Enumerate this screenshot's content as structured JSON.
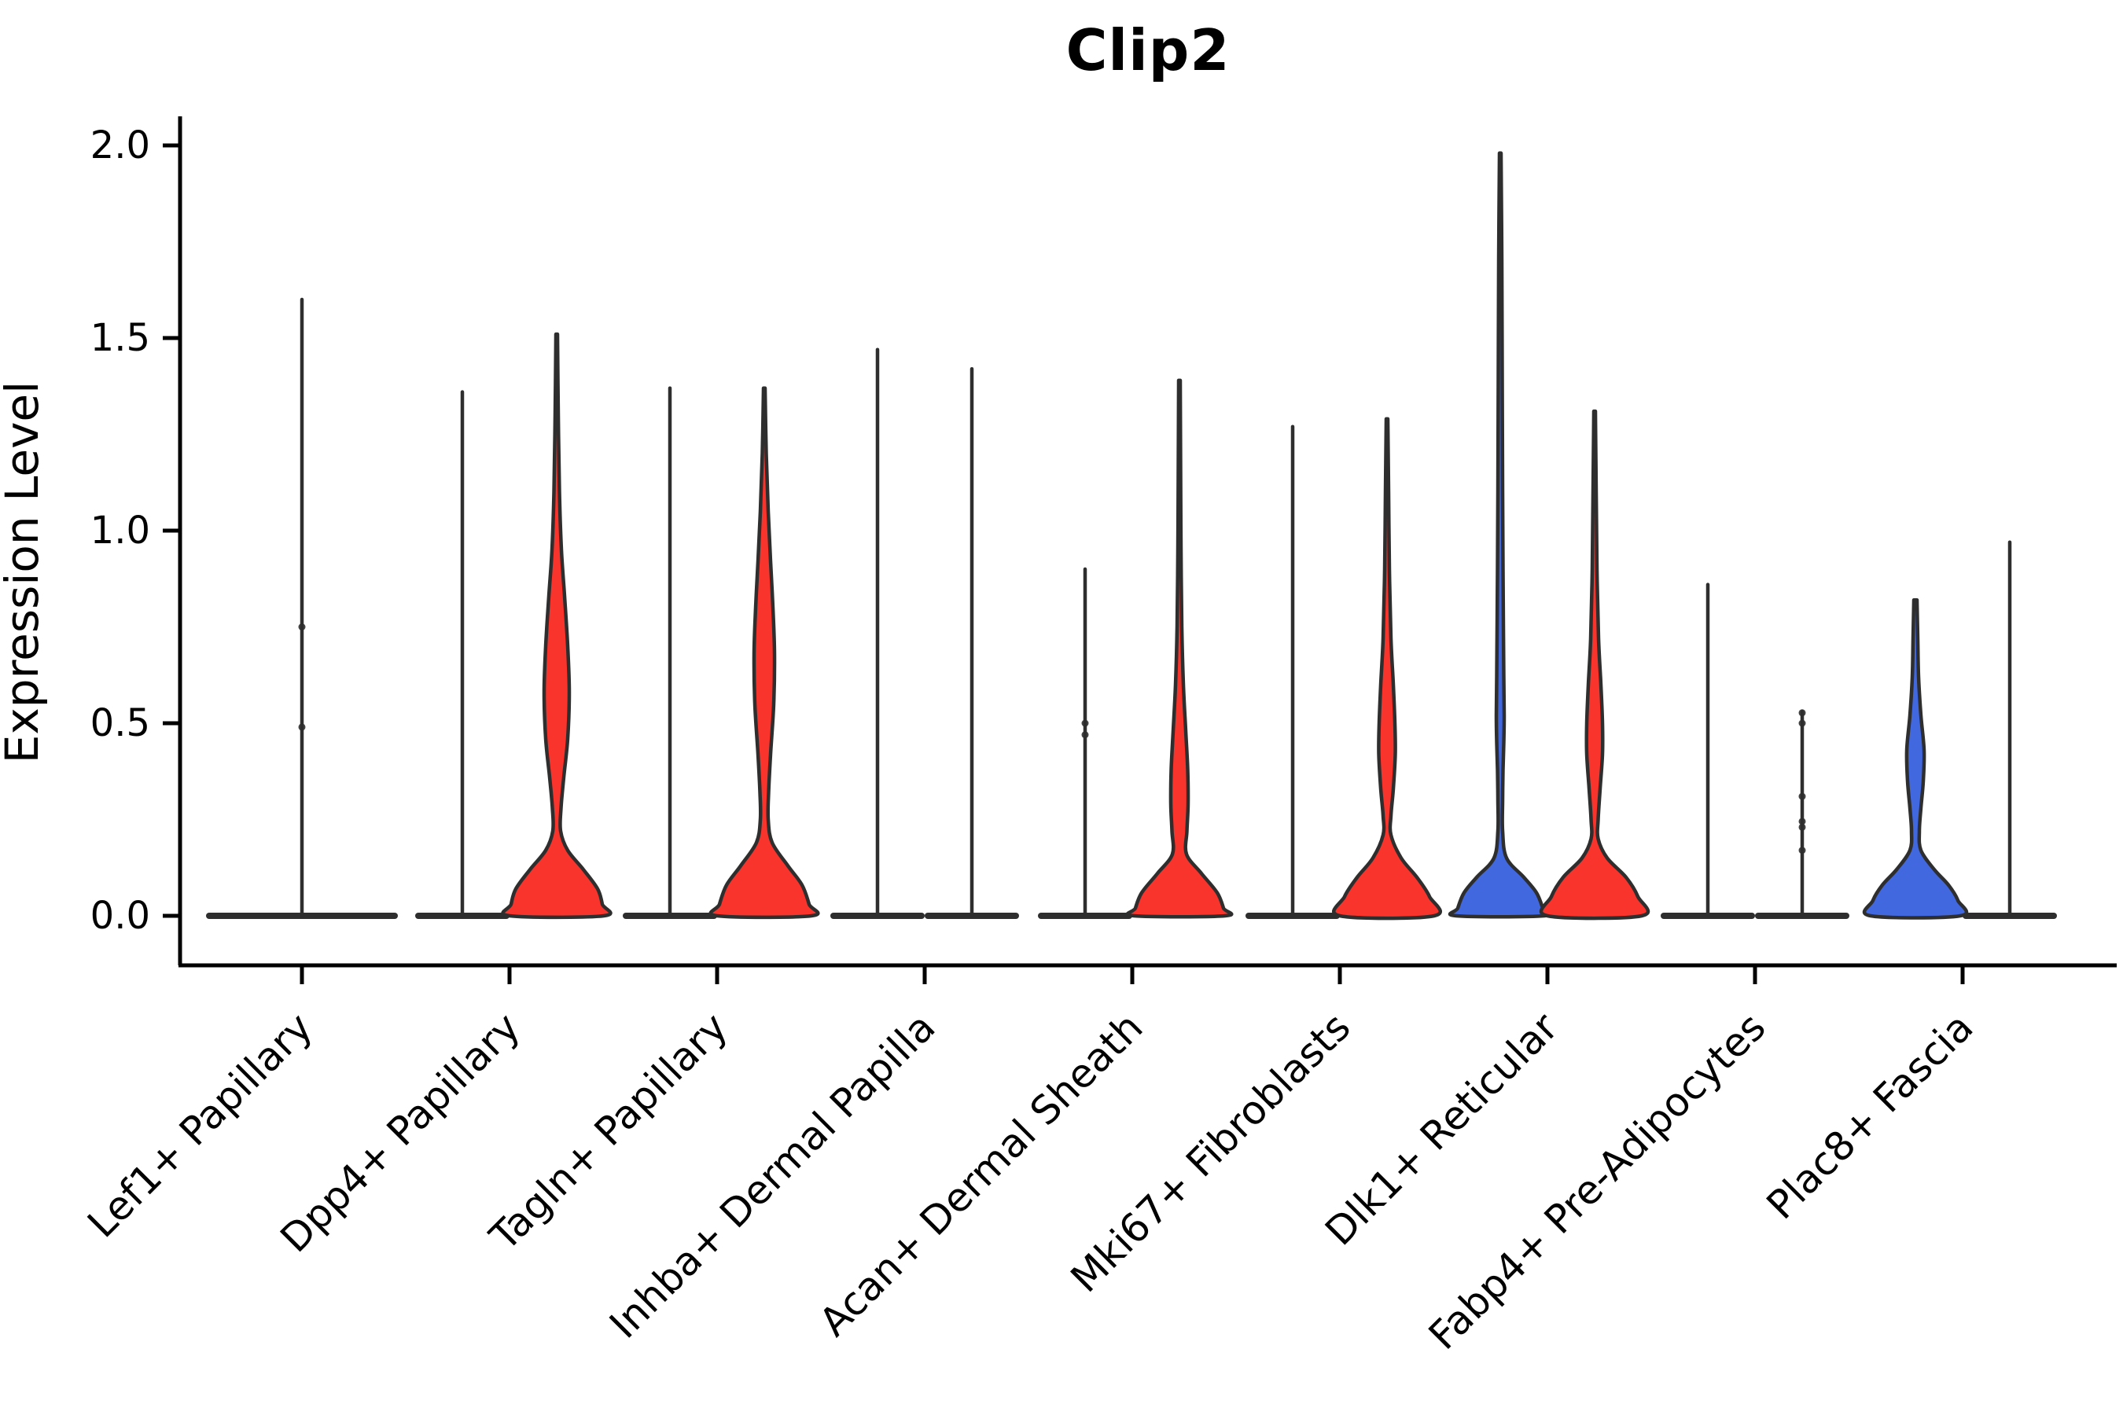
{
  "title": "Clip2",
  "chart_data": {
    "type": "violin",
    "title": "Clip2",
    "xlabel": "",
    "ylabel": "Expression Level",
    "ylim": [
      0,
      2.05
    ],
    "yticks": [
      "0.0",
      "0.5",
      "1.0",
      "1.5",
      "2.0"
    ],
    "ytick_values": [
      0,
      0.5,
      1.0,
      1.5,
      2.0
    ],
    "grid": false,
    "legend": "none",
    "colors": {
      "red": "#F8342C",
      "blue": "#4268DF",
      "outline": "#2E2E2E",
      "axis": "#000000",
      "text": "#000000"
    },
    "categories": [
      "Lef1+ Papillary",
      "Dpp4+ Papillary",
      "Tagln+ Papillary",
      "Inhba+ Dermal Papilla",
      "Acan+ Dermal Sheath",
      "Mki67+ Fibroblasts",
      "Dlk1+ Reticular",
      "Fabp4+ Pre-Adipocytes",
      "Plac8+ Fascia"
    ],
    "groups": [
      {
        "category": "Lef1+ Papillary",
        "violins": [
          {
            "side": "center",
            "kind": "spike",
            "color": "none",
            "max": 1.6,
            "base_halfwidth": 122,
            "dots": [
              0.75,
              0.49
            ]
          }
        ]
      },
      {
        "category": "Dpp4+ Papillary",
        "violins": [
          {
            "side": "left",
            "kind": "spike",
            "color": "none",
            "max": 1.36,
            "base_halfwidth": 60,
            "dots": []
          },
          {
            "side": "right",
            "kind": "shaped",
            "color": "red",
            "max": 1.51,
            "base_halfwidth": 60,
            "dots": [],
            "profile": [
              [
                1.51,
                1
              ],
              [
                1.3,
                2
              ],
              [
                1.1,
                3.5
              ],
              [
                0.95,
                6
              ],
              [
                0.83,
                10
              ],
              [
                0.7,
                14
              ],
              [
                0.58,
                16
              ],
              [
                0.46,
                14
              ],
              [
                0.36,
                9
              ],
              [
                0.28,
                5.5
              ],
              [
                0.22,
                5
              ],
              [
                0.17,
                14
              ],
              [
                0.12,
                34
              ],
              [
                0.07,
                52
              ],
              [
                0.03,
                58
              ],
              [
                0,
                60
              ]
            ]
          }
        ]
      },
      {
        "category": "Tagln+ Papillary",
        "violins": [
          {
            "side": "left",
            "kind": "spike",
            "color": "none",
            "max": 1.37,
            "base_halfwidth": 60,
            "dots": []
          },
          {
            "side": "right",
            "kind": "shaped",
            "color": "red",
            "max": 1.37,
            "base_halfwidth": 60,
            "dots": [],
            "profile": [
              [
                1.37,
                1
              ],
              [
                1.2,
                2.5
              ],
              [
                1.05,
                5
              ],
              [
                0.92,
                8
              ],
              [
                0.8,
                11
              ],
              [
                0.68,
                13
              ],
              [
                0.55,
                12
              ],
              [
                0.42,
                8
              ],
              [
                0.32,
                5.5
              ],
              [
                0.25,
                5
              ],
              [
                0.19,
                10
              ],
              [
                0.13,
                30
              ],
              [
                0.08,
                48
              ],
              [
                0.03,
                57
              ],
              [
                0,
                60
              ]
            ]
          }
        ]
      },
      {
        "category": "Inhba+ Dermal Papilla",
        "violins": [
          {
            "side": "left",
            "kind": "spike",
            "color": "none",
            "max": 1.47,
            "base_halfwidth": 60,
            "dots": []
          },
          {
            "side": "right",
            "kind": "spike",
            "color": "none",
            "max": 1.42,
            "base_halfwidth": 60,
            "dots": []
          }
        ]
      },
      {
        "category": "Acan+ Dermal Sheath",
        "violins": [
          {
            "side": "left",
            "kind": "spike",
            "color": "none",
            "max": 0.9,
            "base_halfwidth": 60,
            "dots": [
              0.5,
              0.47
            ]
          },
          {
            "side": "right",
            "kind": "shaped",
            "color": "red",
            "max": 1.39,
            "base_halfwidth": 58,
            "dots": [],
            "profile": [
              [
                1.39,
                1
              ],
              [
                1.15,
                1.5
              ],
              [
                0.95,
                2
              ],
              [
                0.75,
                3
              ],
              [
                0.6,
                5
              ],
              [
                0.48,
                8
              ],
              [
                0.38,
                10.5
              ],
              [
                0.29,
                11
              ],
              [
                0.22,
                9.5
              ],
              [
                0.16,
                9
              ],
              [
                0.11,
                28
              ],
              [
                0.06,
                48
              ],
              [
                0.02,
                56
              ],
              [
                0,
                58
              ]
            ]
          }
        ]
      },
      {
        "category": "Mki67+ Fibroblasts",
        "violins": [
          {
            "side": "left",
            "kind": "spike",
            "color": "none",
            "max": 1.27,
            "base_halfwidth": 60,
            "dots": []
          },
          {
            "side": "right",
            "kind": "shaped",
            "color": "red",
            "max": 1.29,
            "base_halfwidth": 60,
            "dots": [],
            "profile": [
              [
                1.29,
                1
              ],
              [
                1.1,
                2
              ],
              [
                0.9,
                3
              ],
              [
                0.72,
                5
              ],
              [
                0.6,
                8
              ],
              [
                0.5,
                10
              ],
              [
                0.42,
                10.5
              ],
              [
                0.33,
                8
              ],
              [
                0.26,
                5
              ],
              [
                0.21,
                5
              ],
              [
                0.15,
                18
              ],
              [
                0.1,
                38
              ],
              [
                0.05,
                54
              ],
              [
                0,
                60
              ]
            ]
          }
        ]
      },
      {
        "category": "Dlk1+ Reticular",
        "violins": [
          {
            "side": "left",
            "kind": "shaped",
            "color": "blue",
            "max": 1.98,
            "base_halfwidth": 56,
            "dots": [],
            "profile": [
              [
                1.98,
                1
              ],
              [
                1.7,
                2
              ],
              [
                1.4,
                2.5
              ],
              [
                1.1,
                3
              ],
              [
                0.9,
                3.5
              ],
              [
                0.75,
                4
              ],
              [
                0.62,
                4.5
              ],
              [
                0.52,
                5
              ],
              [
                0.45,
                4.5
              ],
              [
                0.38,
                3.5
              ],
              [
                0.3,
                3
              ],
              [
                0.22,
                3
              ],
              [
                0.15,
                8
              ],
              [
                0.1,
                30
              ],
              [
                0.06,
                46
              ],
              [
                0.02,
                54
              ],
              [
                0,
                56
              ]
            ]
          },
          {
            "side": "right",
            "kind": "shaped",
            "color": "red",
            "max": 1.31,
            "base_halfwidth": 60,
            "dots": [],
            "profile": [
              [
                1.31,
                1
              ],
              [
                1.1,
                2
              ],
              [
                0.9,
                3
              ],
              [
                0.72,
                5
              ],
              [
                0.6,
                8
              ],
              [
                0.5,
                10
              ],
              [
                0.42,
                10
              ],
              [
                0.33,
                7
              ],
              [
                0.25,
                4.5
              ],
              [
                0.2,
                4.5
              ],
              [
                0.15,
                16
              ],
              [
                0.1,
                40
              ],
              [
                0.05,
                55
              ],
              [
                0,
                60
              ]
            ]
          }
        ]
      },
      {
        "category": "Fabp4+ Pre-Adipocytes",
        "violins": [
          {
            "side": "left",
            "kind": "spike",
            "color": "none",
            "max": 0.86,
            "base_halfwidth": 60,
            "dots": []
          },
          {
            "side": "right",
            "kind": "spike",
            "color": "none",
            "max": 0.53,
            "base_halfwidth": 60,
            "dots": [
              0.527,
              0.5,
              0.31,
              0.245,
              0.23,
              0.17
            ]
          }
        ]
      },
      {
        "category": "Plac8+ Fascia",
        "violins": [
          {
            "side": "left",
            "kind": "shaped",
            "color": "blue",
            "max": 0.82,
            "base_halfwidth": 57,
            "dots": [],
            "profile": [
              [
                0.82,
                2
              ],
              [
                0.72,
                3
              ],
              [
                0.62,
                4
              ],
              [
                0.52,
                7
              ],
              [
                0.43,
                11
              ],
              [
                0.35,
                10
              ],
              [
                0.28,
                7
              ],
              [
                0.22,
                5
              ],
              [
                0.17,
                7
              ],
              [
                0.12,
                24
              ],
              [
                0.08,
                42
              ],
              [
                0.04,
                54
              ],
              [
                0,
                57
              ]
            ]
          },
          {
            "side": "right",
            "kind": "spike",
            "color": "none",
            "max": 0.97,
            "base_halfwidth": 60,
            "dots": []
          }
        ]
      }
    ]
  }
}
